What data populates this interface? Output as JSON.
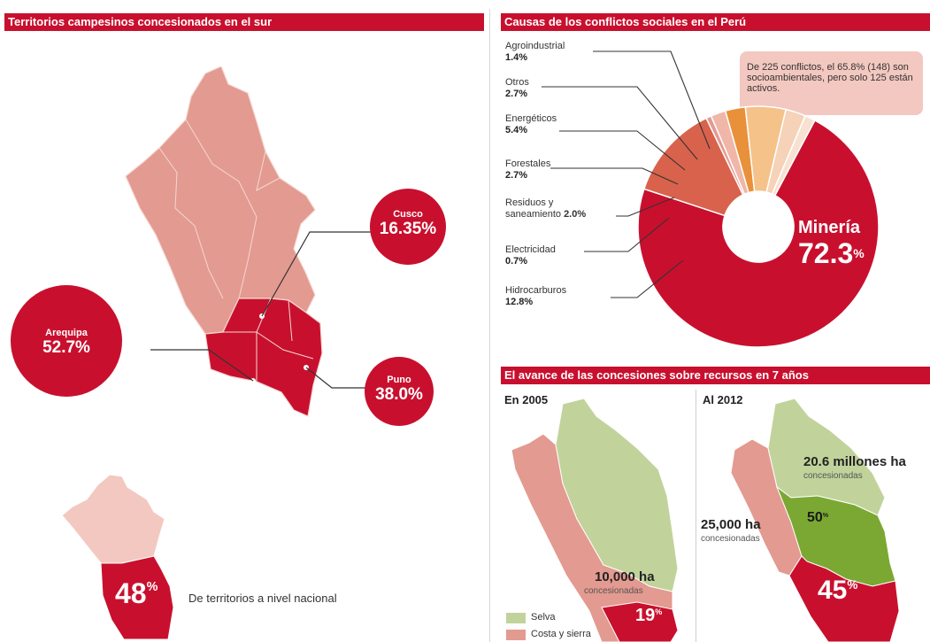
{
  "colors": {
    "red": "#c8102e",
    "pink": "#e39a90",
    "light_pink": "#f3c8c0",
    "peach": "#f5d2b8",
    "orange": "#e8913a",
    "dark_orange": "#d96b1e",
    "salmon": "#d9624c",
    "green_light": "#c1d39b",
    "green_dark": "#7aa832"
  },
  "left_panel": {
    "title": "Territorios campesinos concesionados en el sur",
    "bubbles": [
      {
        "name": "Cusco",
        "value": "16.35%"
      },
      {
        "name": "Arequipa",
        "value": "52.7%"
      },
      {
        "name": "Puno",
        "value": "38.0%"
      }
    ],
    "national_pct": "48",
    "national_pct_sign": "%",
    "national_label": "De territorios a nivel nacional"
  },
  "right_top": {
    "title": "Causas de los conflictos sociales en el Perú",
    "note": "De 225 conflictos, el 65.8% (148) son socioambientales, pero solo 125 están activos.",
    "big_label_name": "Minería",
    "big_label_value": "72.3",
    "big_label_sign": "%",
    "labels": [
      {
        "name": "Agroindustrial",
        "pct": "1.4%"
      },
      {
        "name": "Otros",
        "pct": "2.7%"
      },
      {
        "name": "Energéticos",
        "pct": "5.4%"
      },
      {
        "name": "Forestales",
        "pct": "2.7%"
      },
      {
        "name": "Residuos y",
        "name2": "saneamiento",
        "pct": "2.0%"
      },
      {
        "name": "Electricidad",
        "pct": "0.7%"
      },
      {
        "name": "Hidrocarburos",
        "pct": "12.8%"
      }
    ]
  },
  "right_bottom": {
    "title": "El avance de las concesiones sobre recursos en 7 años",
    "y2005": "En 2005",
    "y2012": "Al 2012",
    "ha_2005": "10,000 ha",
    "ha_2005_sub": "concesionadas",
    "pct_2005": "19",
    "ha_2012_a": "20.6 millones ha",
    "ha_2012_a_sub": "concesionadas",
    "ha_2012_b": "25,000 ha",
    "ha_2012_b_sub": "concesionadas",
    "pct_2012_green": "50",
    "pct_2012_red": "45",
    "pct_sign": "%",
    "legend": [
      {
        "label": "Selva",
        "color": "#c1d39b"
      },
      {
        "label": "Costa y sierra",
        "color": "#e39a90"
      }
    ]
  },
  "chart_data": [
    {
      "type": "pie",
      "title": "Causas de los conflictos sociales en el Perú",
      "categories": [
        "Minería",
        "Hidrocarburos",
        "Electricidad",
        "Residuos y saneamiento",
        "Forestales",
        "Energéticos",
        "Otros",
        "Agroindustrial"
      ],
      "values": [
        72.3,
        12.8,
        0.7,
        2.0,
        2.7,
        5.4,
        2.7,
        1.4
      ],
      "colors": [
        "#c8102e",
        "#d9624c",
        "#e39a90",
        "#f0b6a8",
        "#e8913a",
        "#f5c28a",
        "#f5d2b8",
        "#f7e1d0"
      ]
    },
    {
      "type": "bar",
      "title": "Territorios campesinos concesionados en el sur",
      "categories": [
        "Cusco",
        "Arequipa",
        "Puno"
      ],
      "values": [
        16.35,
        52.7,
        38.0
      ]
    }
  ]
}
